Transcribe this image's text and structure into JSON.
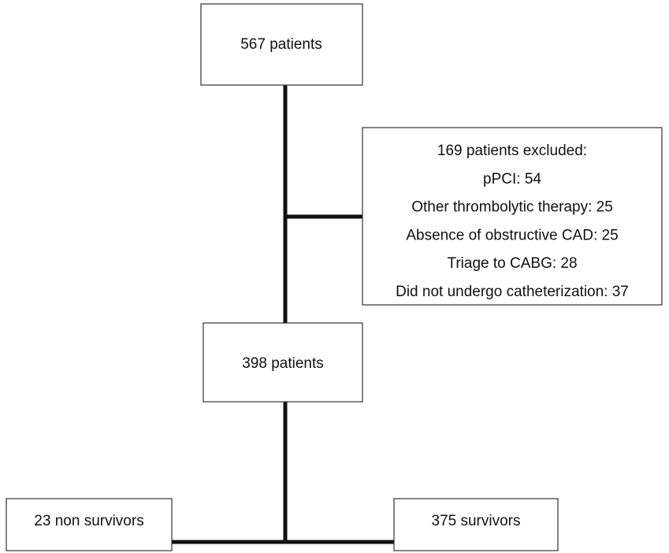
{
  "nodes": [
    {
      "label": "567 patients"
    },
    {
      "lines": [
        "169 patients excluded:",
        "pPCI: 54",
        "Other thrombolytic therapy: 25",
        "Absence of obstructive CAD: 25",
        "Triage to CABG: 28",
        "Did not undergo catheterization: 37"
      ]
    },
    {
      "label": "398 patients"
    },
    {
      "label": "23 non survivors"
    },
    {
      "label": "375 survivors"
    }
  ]
}
